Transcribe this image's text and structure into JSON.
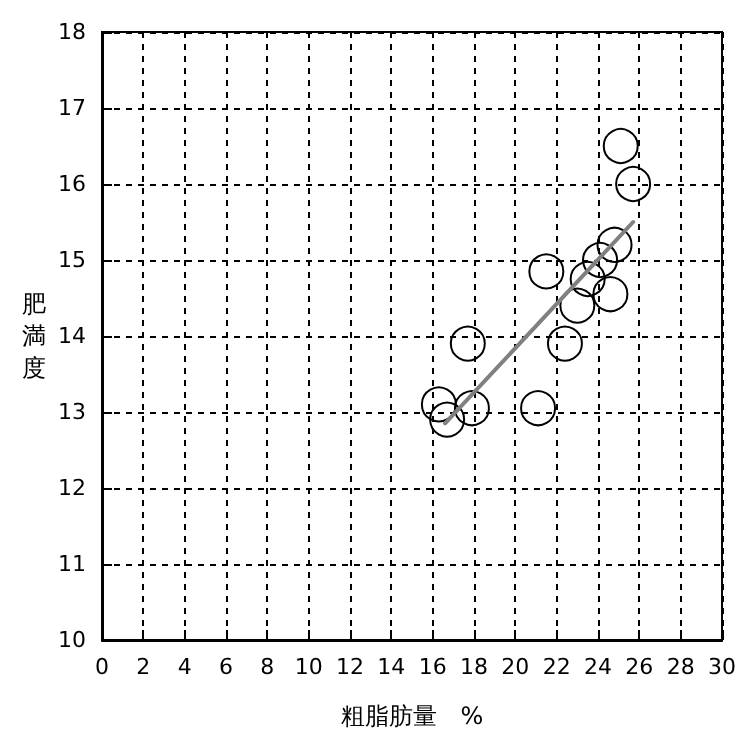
{
  "chart_data": {
    "type": "scatter",
    "xlabel": "粗脂肪量　%",
    "ylabel": "肥満度",
    "xlim": [
      0,
      30
    ],
    "ylim": [
      10,
      18
    ],
    "xticks": [
      0,
      2,
      4,
      6,
      8,
      10,
      12,
      14,
      16,
      18,
      20,
      22,
      24,
      26,
      28,
      30
    ],
    "yticks": [
      10,
      11,
      12,
      13,
      14,
      15,
      16,
      17,
      18
    ],
    "grid": true,
    "marker": "circle",
    "series": [
      {
        "color": "#000000",
        "x": [
          16.3,
          16.7,
          17.7,
          17.9,
          21.1,
          21.5,
          22.4,
          23.0,
          23.5,
          24.1,
          24.8,
          24.6,
          25.1,
          25.7
        ],
        "values": [
          13.1,
          12.9,
          13.9,
          13.05,
          13.05,
          14.85,
          13.9,
          14.4,
          14.75,
          15.0,
          15.2,
          14.55,
          16.5,
          16.0
        ]
      },
      {
        "type": "line",
        "color": "#808080",
        "marker": "none",
        "line_style": "solid",
        "x": [
          16.6,
          25.7
        ],
        "values": [
          12.85,
          15.5
        ]
      }
    ]
  }
}
